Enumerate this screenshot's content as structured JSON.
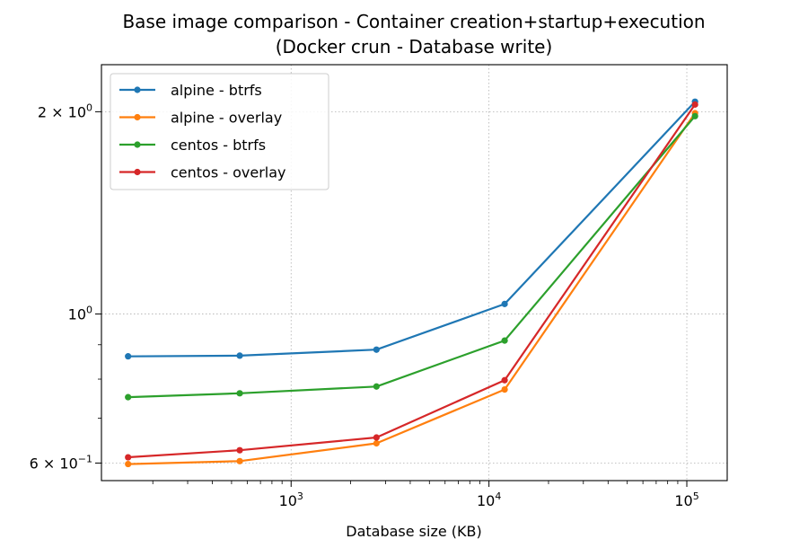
{
  "chart_data": {
    "type": "line",
    "title": "Base image comparison - Container creation+startup+execution",
    "subtitle": "(Docker crun - Database write)",
    "xlabel": "Database size (KB)",
    "ylabel": "",
    "xscale": "log",
    "yscale": "log",
    "xlim": [
      110,
      160000
    ],
    "ylim": [
      0.565,
      2.35
    ],
    "grid": true,
    "legend_position": "top-left",
    "x": [
      150,
      550,
      2700,
      12000,
      110000
    ],
    "x_tick_labels": [
      {
        "base": "10",
        "exp": "3",
        "value": 1000
      },
      {
        "base": "10",
        "exp": "4",
        "value": 10000
      },
      {
        "base": "10",
        "exp": "5",
        "value": 100000
      }
    ],
    "y_tick_labels": [
      {
        "mant": "2",
        "base": "10",
        "exp": "0",
        "value": 2.0
      },
      {
        "mant": "",
        "base": "10",
        "exp": "0",
        "value": 1.0
      },
      {
        "mant": "6",
        "base": "10",
        "exp": "−1",
        "value": 0.6
      }
    ],
    "series": [
      {
        "name": "alpine - btrfs",
        "color": "#1f77b4",
        "values": [
          0.865,
          0.867,
          0.885,
          1.035,
          2.07
        ]
      },
      {
        "name": "alpine - overlay",
        "color": "#ff7f0e",
        "values": [
          0.598,
          0.604,
          0.642,
          0.772,
          1.99
        ]
      },
      {
        "name": "centos - btrfs",
        "color": "#2ca02c",
        "values": [
          0.752,
          0.762,
          0.78,
          0.913,
          1.97
        ]
      },
      {
        "name": "centos - overlay",
        "color": "#d62728",
        "values": [
          0.612,
          0.627,
          0.655,
          0.797,
          2.05
        ]
      }
    ]
  }
}
